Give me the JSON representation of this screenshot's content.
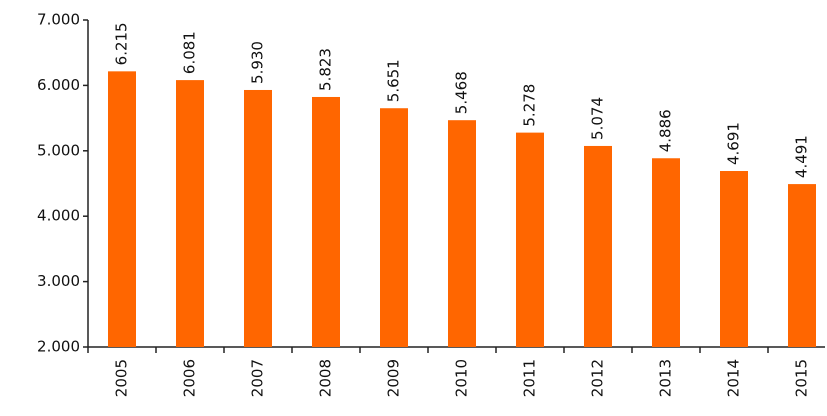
{
  "chart_data": {
    "type": "bar",
    "categories": [
      "2005",
      "2006",
      "2007",
      "2008",
      "2009",
      "2010",
      "2011",
      "2012",
      "2013",
      "2014",
      "2015"
    ],
    "values": [
      6215,
      6081,
      5930,
      5823,
      5651,
      5468,
      5278,
      5074,
      4886,
      4691,
      4491
    ],
    "value_labels": [
      "6.215",
      "6.081",
      "5.930",
      "5.823",
      "5.651",
      "5.468",
      "5.278",
      "5.074",
      "4.886",
      "4.691",
      "4.491"
    ],
    "color": "#ff6600",
    "ylim": [
      2000,
      7000
    ],
    "yticks": [
      {
        "value": 2000,
        "label": "2.000"
      },
      {
        "value": 3000,
        "label": "3.000"
      },
      {
        "value": 4000,
        "label": "4.000"
      },
      {
        "value": 5000,
        "label": "5.000"
      },
      {
        "value": 6000,
        "label": "6.000"
      },
      {
        "value": 7000,
        "label": "7.000"
      }
    ],
    "grid": false
  }
}
